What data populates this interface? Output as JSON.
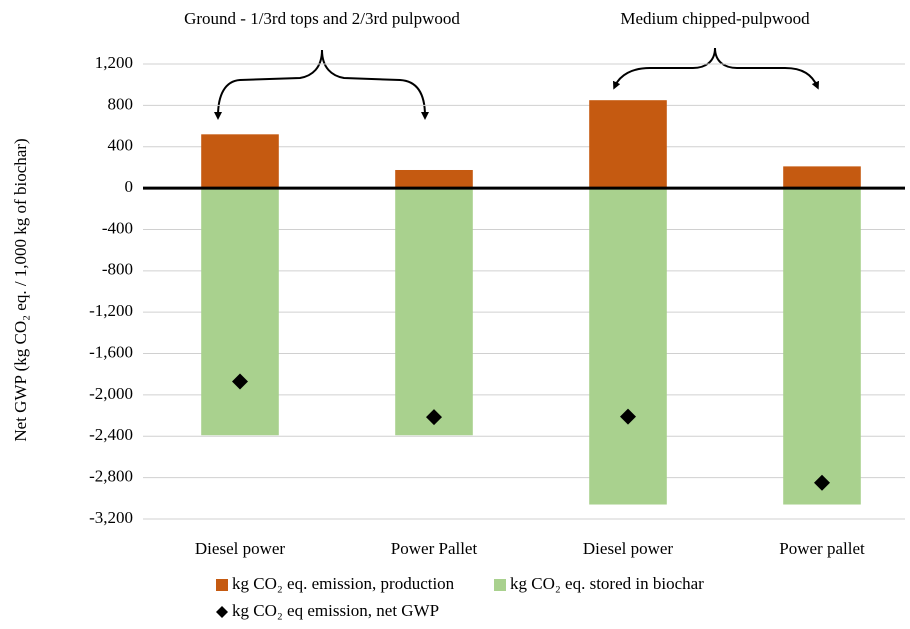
{
  "chart_data": {
    "type": "bar",
    "stacked": true,
    "annotations": [
      "Ground - 1/3rd tops and 2/3rd pulpwood",
      "Medium chipped-pulpwood"
    ],
    "y_label": "Net GWP (kg CO₂ eq. / 1,000 kg of biochar)",
    "categories": [
      "Diesel power",
      "Power Pallet",
      "Diesel power",
      "Power pallet"
    ],
    "series": [
      {
        "name": "kg CO₂ eq. emission, production",
        "color": "#c55a11",
        "values": [
          520,
          175,
          850,
          210
        ]
      },
      {
        "name": "kg CO₂ eq. stored in biochar",
        "color": "#a9d18e",
        "values": [
          -2390,
          -2390,
          -3060,
          -3060
        ]
      },
      {
        "name": "kg CO₂ eq emission, net GWP",
        "color": "#000000",
        "type": "scatter",
        "marker": "diamond",
        "values": [
          -1870,
          -2215,
          -2210,
          -2850
        ]
      }
    ],
    "ylim": [
      -3200,
      1200
    ],
    "yticks": [
      {
        "value": -3200,
        "label": "-3,200"
      },
      {
        "value": -2800,
        "label": "-2,800"
      },
      {
        "value": -2400,
        "label": "-2,400"
      },
      {
        "value": -2000,
        "label": "-2,000"
      },
      {
        "value": -1600,
        "label": "-1,600"
      },
      {
        "value": -1200,
        "label": "-1,200"
      },
      -800,
      -400,
      0,
      400,
      800,
      {
        "value": 1200,
        "label": "1,200"
      }
    ],
    "grid": true
  }
}
